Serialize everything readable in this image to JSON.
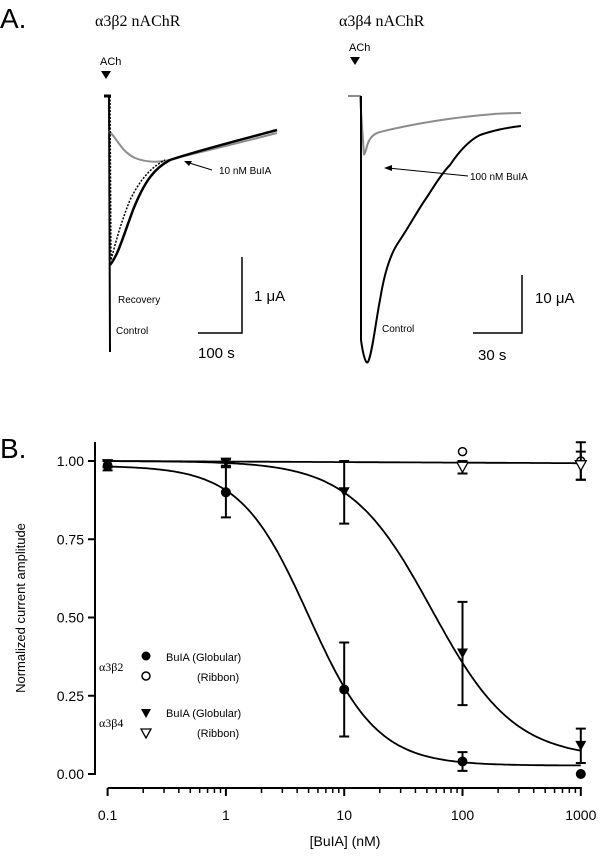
{
  "panel_a": {
    "label": "A.",
    "left": {
      "title": "α3β2 nAChR",
      "stimulus": "ACh",
      "annotation": "10 nM BuIA",
      "recovery_label": "Recovery",
      "control_label": "Control",
      "scale_y": "1 μA",
      "scale_x": "100 s"
    },
    "right": {
      "title": "α3β4 nAChR",
      "stimulus": "ACh",
      "annotation": "100 nM BuIA",
      "control_label": "Control",
      "scale_y": "10 μA",
      "scale_x": "30 s"
    },
    "colors": {
      "control": "#000000",
      "toxin": "#8c8c8c"
    }
  },
  "panel_b": {
    "label": "B.",
    "chart_data": {
      "type": "scatter",
      "xlabel": "[BuIA] (nM)",
      "ylabel": "Normalized current amplitude",
      "xscale": "log",
      "xlim": [
        0.1,
        1000
      ],
      "ylim": [
        0,
        1.0
      ],
      "xticks": [
        "0.1",
        "1",
        "10",
        "100",
        "1000"
      ],
      "yticks": [
        "0.00",
        "0.25",
        "0.50",
        "0.75",
        "1.00"
      ],
      "grid": false,
      "legend": {
        "groups": [
          {
            "receptor": "α3β2",
            "entries": [
              "BuIA (Globular)",
              "(Ribbon)"
            ]
          },
          {
            "receptor": "α3β4",
            "entries": [
              "BuIA (Globular)",
              "(Ribbon)"
            ]
          }
        ],
        "placement": "center-left"
      },
      "series": [
        {
          "receptor": "α3β2",
          "form": "Globular",
          "marker": "filled-circle",
          "x": [
            0.1,
            1,
            10,
            100,
            1000
          ],
          "y": [
            0.985,
            0.9,
            0.27,
            0.04,
            0.0
          ],
          "err": [
            0.015,
            0.08,
            0.15,
            0.03,
            0
          ],
          "fit": {
            "top": 0.985,
            "bottom": 0.027,
            "ic50": 5,
            "hill": 1.5
          }
        },
        {
          "receptor": "α3β2",
          "form": "Ribbon",
          "marker": "open-circle",
          "x": [
            100,
            1000
          ],
          "y": [
            1.03,
            1.0
          ],
          "err": [
            0,
            0.06
          ]
        },
        {
          "receptor": "α3β4",
          "form": "Globular",
          "marker": "filled-triangle-down",
          "x": [
            0.1,
            1,
            10,
            100,
            1000
          ],
          "y": [
            0.99,
            0.995,
            0.9,
            0.385,
            0.09
          ],
          "err": [
            0.01,
            0.01,
            0.1,
            0.165,
            0.055
          ],
          "fit": {
            "top": 1.0,
            "bottom": 0.05,
            "ic50": 55,
            "hill": 1.25
          }
        },
        {
          "receptor": "α3β4",
          "form": "Ribbon",
          "marker": "open-triangle-down",
          "x": [
            100,
            1000
          ],
          "y": [
            0.98,
            0.985
          ],
          "err": [
            0.02,
            0.045
          ],
          "fit": {
            "flat_from": 1.0,
            "flat_to": 0.993
          }
        }
      ]
    }
  }
}
